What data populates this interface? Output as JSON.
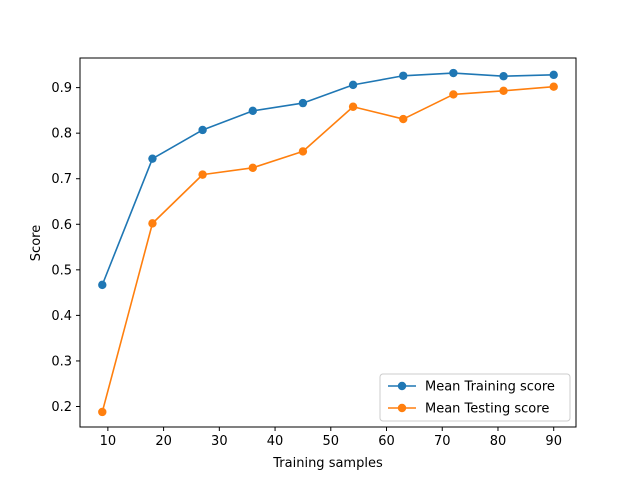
{
  "chart_data": {
    "type": "line",
    "xlabel": "Training samples",
    "ylabel": "Score",
    "xlim": [
      5,
      94
    ],
    "ylim": [
      0.155,
      0.965
    ],
    "xticks": [
      10,
      20,
      30,
      40,
      50,
      60,
      70,
      80,
      90
    ],
    "xtick_labels": [
      "10",
      "20",
      "30",
      "40",
      "50",
      "60",
      "70",
      "80",
      "90"
    ],
    "yticks": [
      0.2,
      0.3,
      0.4,
      0.5,
      0.6,
      0.7,
      0.8,
      0.9
    ],
    "ytick_labels": [
      "0.2",
      "0.3",
      "0.4",
      "0.5",
      "0.6",
      "0.7",
      "0.8",
      "0.9"
    ],
    "grid": false,
    "legend_position": "lower-right",
    "x": [
      9,
      18,
      27,
      36,
      45,
      54,
      63,
      72,
      81,
      90
    ],
    "series": [
      {
        "name": "Mean Training score",
        "color": "#1f77b4",
        "marker": "circle",
        "values": [
          0.467,
          0.744,
          0.807,
          0.849,
          0.866,
          0.906,
          0.926,
          0.932,
          0.925,
          0.928
        ]
      },
      {
        "name": "Mean Testing score",
        "color": "#ff7f0e",
        "marker": "circle",
        "values": [
          0.188,
          0.602,
          0.709,
          0.724,
          0.76,
          0.858,
          0.831,
          0.885,
          0.893,
          0.902
        ]
      }
    ]
  }
}
